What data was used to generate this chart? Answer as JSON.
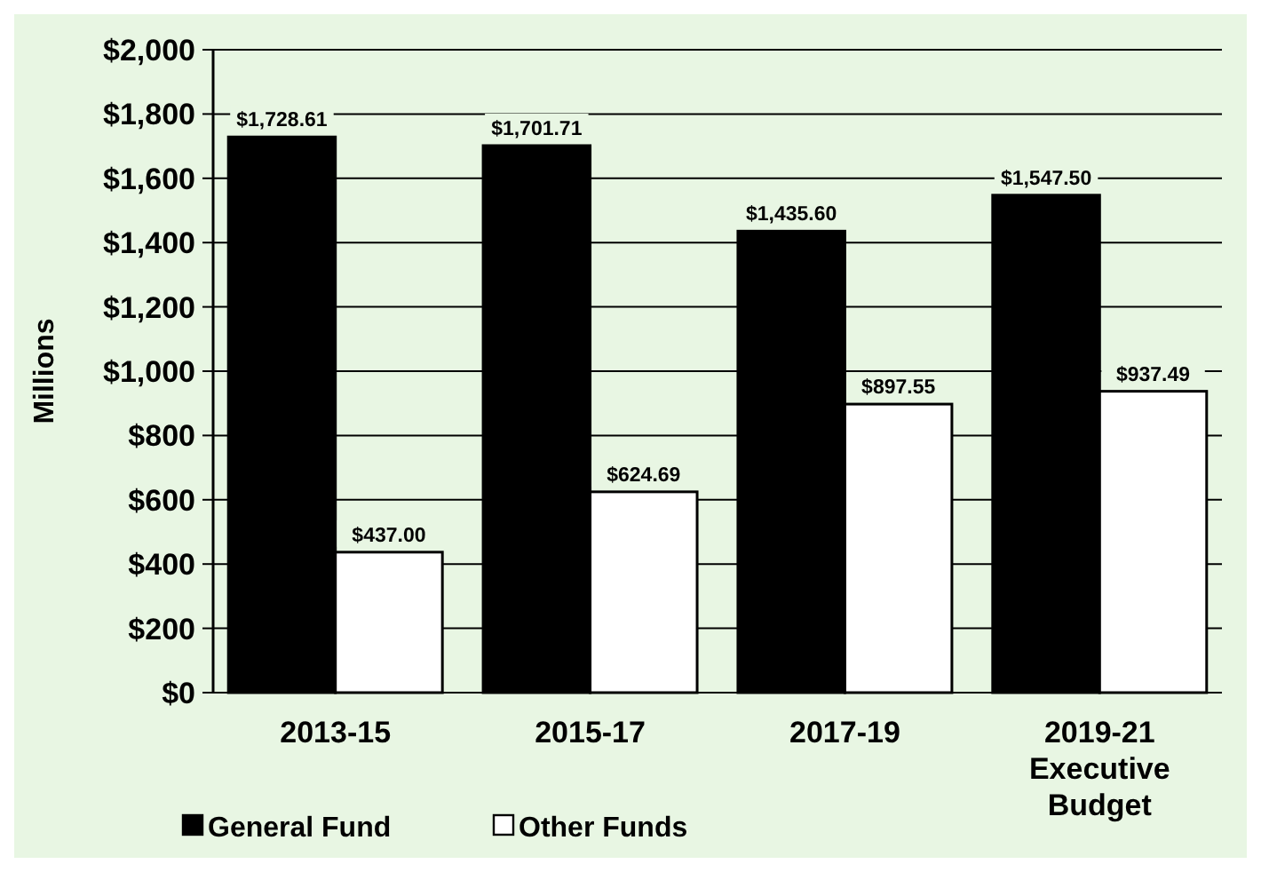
{
  "chart_data": {
    "type": "bar",
    "ylabel": "Millions",
    "categories": [
      "2013-15",
      "2015-17",
      "2017-19",
      "2019-21 Executive Budget"
    ],
    "series": [
      {
        "name": "General Fund",
        "color": "#000000",
        "values": [
          1728.61,
          1701.71,
          1435.6,
          1547.5
        ],
        "value_labels": [
          "$1,728.61",
          "$1,701.71",
          "$1,435.60",
          "$1,547.50"
        ]
      },
      {
        "name": "Other Funds",
        "color": "#ffffff",
        "values": [
          437,
          624.69,
          897.55,
          937.49
        ],
        "value_labels": [
          "$437.00",
          "$624.69",
          "$897.55",
          "$937.49"
        ]
      }
    ],
    "ylim": [
      0,
      2000
    ],
    "yticks": [
      {
        "value": 0,
        "label": "$0"
      },
      {
        "value": 200,
        "label": "$200"
      },
      {
        "value": 400,
        "label": "$400"
      },
      {
        "value": 600,
        "label": "$600"
      },
      {
        "value": 800,
        "label": "$800"
      },
      {
        "value": 1000,
        "label": "$1,000"
      },
      {
        "value": 1200,
        "label": "$1,200"
      },
      {
        "value": 1400,
        "label": "$1,400"
      },
      {
        "value": 1600,
        "label": "$1,600"
      },
      {
        "value": 1800,
        "label": "$1,800"
      },
      {
        "value": 2000,
        "label": "$2,000"
      }
    ],
    "grid": "y",
    "legend": "bottom left"
  }
}
